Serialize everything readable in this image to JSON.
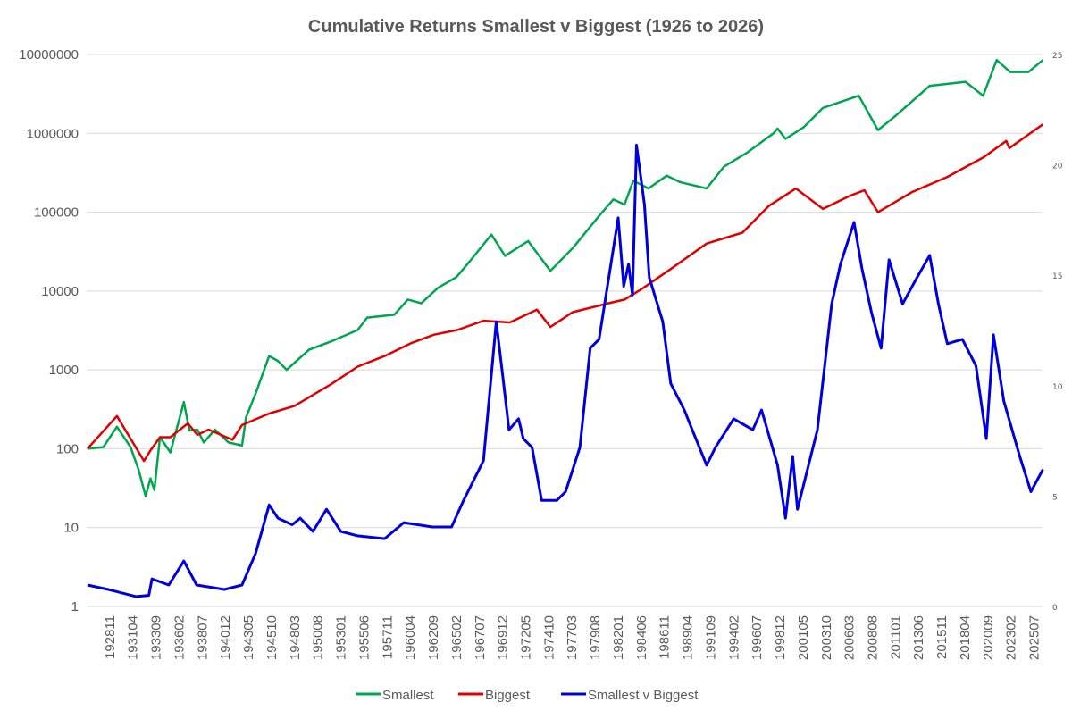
{
  "chart_data": {
    "type": "line",
    "title": "Cumulative Returns Smallest v Biggest  (1926 to 2026)",
    "xlabel": "",
    "ylabel": "",
    "y_scale": "log",
    "ylim": [
      1,
      10000000
    ],
    "y_ticks": [
      "1",
      "10",
      "100",
      "1000",
      "10000",
      "100000",
      "1000000",
      "10000000"
    ],
    "y2lim": [
      0,
      25
    ],
    "y2_ticks": [
      "0",
      "5",
      "10",
      "15",
      "20",
      "25"
    ],
    "x_ticks": [
      "192811",
      "193104",
      "193309",
      "193602",
      "193807",
      "194012",
      "194305",
      "194510",
      "194803",
      "195008",
      "195301",
      "195506",
      "195711",
      "196004",
      "196209",
      "196502",
      "196707",
      "196912",
      "197205",
      "197410",
      "197703",
      "197908",
      "198201",
      "198406",
      "198611",
      "198904",
      "199109",
      "199402",
      "199607",
      "199812",
      "200105",
      "200310",
      "200603",
      "200808",
      "201101",
      "201306",
      "201511",
      "201804",
      "202009",
      "202302",
      "202507"
    ],
    "grid": true,
    "legend_position": "bottom",
    "series": [
      {
        "name": "Smallest",
        "axis": "left",
        "color": "#00A550",
        "points": [
          [
            "192607",
            100
          ],
          [
            "192803",
            105
          ],
          [
            "192908",
            190
          ],
          [
            "193101",
            105
          ],
          [
            "193111",
            55
          ],
          [
            "193208",
            25
          ],
          [
            "193302",
            42
          ],
          [
            "193307",
            30
          ],
          [
            "193402",
            140
          ],
          [
            "193503",
            90
          ],
          [
            "193608",
            390
          ],
          [
            "193703",
            170
          ],
          [
            "193801",
            175
          ],
          [
            "193809",
            120
          ],
          [
            "193911",
            175
          ],
          [
            "194104",
            120
          ],
          [
            "194209",
            110
          ],
          [
            "194302",
            250
          ],
          [
            "194402",
            500
          ],
          [
            "194507",
            1500
          ],
          [
            "194606",
            1300
          ],
          [
            "194705",
            1000
          ],
          [
            "194909",
            1800
          ],
          [
            "195201",
            2300
          ],
          [
            "195410",
            3200
          ],
          [
            "195510",
            4600
          ],
          [
            "195808",
            5000
          ],
          [
            "196001",
            7800
          ],
          [
            "196106",
            7000
          ],
          [
            "196303",
            11000
          ],
          [
            "196502",
            15000
          ],
          [
            "196607",
            24000
          ],
          [
            "196810",
            52000
          ],
          [
            "197003",
            28000
          ],
          [
            "197208",
            43000
          ],
          [
            "197412",
            18000
          ],
          [
            "197704",
            35000
          ],
          [
            "198002",
            92000
          ],
          [
            "198107",
            145000
          ],
          [
            "198209",
            125000
          ],
          [
            "198308",
            250000
          ],
          [
            "198503",
            200000
          ],
          [
            "198702",
            290000
          ],
          [
            "198807",
            240000
          ],
          [
            "199104",
            200000
          ],
          [
            "199302",
            380000
          ],
          [
            "199507",
            570000
          ],
          [
            "199804",
            1000000
          ],
          [
            "199809",
            1150000
          ],
          [
            "199907",
            850000
          ],
          [
            "200106",
            1200000
          ],
          [
            "200306",
            2100000
          ],
          [
            "200703",
            3000000
          ],
          [
            "200903",
            1100000
          ],
          [
            "201011",
            1600000
          ],
          [
            "201408",
            4000000
          ],
          [
            "201805",
            4500000
          ],
          [
            "202003",
            3000000
          ],
          [
            "202108",
            8500000
          ],
          [
            "202301",
            6000000
          ],
          [
            "202412",
            6000000
          ],
          [
            "202606",
            8500000
          ]
        ]
      },
      {
        "name": "Biggest",
        "axis": "left",
        "color": "#E00000",
        "points": [
          [
            "192607",
            100
          ],
          [
            "192908",
            260
          ],
          [
            "193206",
            70
          ],
          [
            "193302",
            95
          ],
          [
            "193402",
            140
          ],
          [
            "193503",
            140
          ],
          [
            "193701",
            210
          ],
          [
            "193801",
            150
          ],
          [
            "193903",
            175
          ],
          [
            "194109",
            130
          ],
          [
            "194209",
            200
          ],
          [
            "194507",
            280
          ],
          [
            "194803",
            350
          ],
          [
            "194909",
            450
          ],
          [
            "195201",
            660
          ],
          [
            "195410",
            1100
          ],
          [
            "195708",
            1500
          ],
          [
            "196006",
            2200
          ],
          [
            "196210",
            2800
          ],
          [
            "196503",
            3200
          ],
          [
            "196712",
            4200
          ],
          [
            "197009",
            4000
          ],
          [
            "197307",
            5800
          ],
          [
            "197412",
            3500
          ],
          [
            "197704",
            5400
          ],
          [
            "198101",
            7000
          ],
          [
            "198209",
            7800
          ],
          [
            "198409",
            11000
          ],
          [
            "198707",
            19000
          ],
          [
            "199104",
            40000
          ],
          [
            "199501",
            55000
          ],
          [
            "199710",
            120000
          ],
          [
            "200008",
            200000
          ],
          [
            "200306",
            110000
          ],
          [
            "200603",
            160000
          ],
          [
            "200710",
            190000
          ],
          [
            "200903",
            100000
          ],
          [
            "201210",
            180000
          ],
          [
            "201606",
            280000
          ],
          [
            "202004",
            500000
          ],
          [
            "202208",
            800000
          ],
          [
            "202212",
            650000
          ],
          [
            "202606",
            1300000
          ]
        ]
      },
      {
        "name": "Smallest v Biggest",
        "axis": "right",
        "color": "#0000DD",
        "points": [
          [
            "192607",
            0.97
          ],
          [
            "192809",
            0.77
          ],
          [
            "193108",
            0.45
          ],
          [
            "193212",
            0.5
          ],
          [
            "193304",
            1.25
          ],
          [
            "193501",
            0.97
          ],
          [
            "193608",
            2.06
          ],
          [
            "193712",
            0.97
          ],
          [
            "194011",
            0.77
          ],
          [
            "194209",
            0.97
          ],
          [
            "194402",
            2.4
          ],
          [
            "194507",
            4.6
          ],
          [
            "194606",
            4.0
          ],
          [
            "194712",
            3.7
          ],
          [
            "194810",
            4.0
          ],
          [
            "195002",
            3.4
          ],
          [
            "195107",
            4.4
          ],
          [
            "195301",
            3.4
          ],
          [
            "195410",
            3.2
          ],
          [
            "195708",
            3.07
          ],
          [
            "195908",
            3.8
          ],
          [
            "196208",
            3.6
          ],
          [
            "196408",
            3.6
          ],
          [
            "196511",
            4.8
          ],
          [
            "196712",
            6.6
          ],
          [
            "196904",
            12.9
          ],
          [
            "196912",
            10.5
          ],
          [
            "197008",
            8.0
          ],
          [
            "197108",
            8.5
          ],
          [
            "197202",
            7.6
          ],
          [
            "197301",
            7.2
          ],
          [
            "197401",
            4.8
          ],
          [
            "197508",
            4.8
          ],
          [
            "197607",
            5.2
          ],
          [
            "197801",
            7.2
          ],
          [
            "197902",
            11.7
          ],
          [
            "198001",
            12.1
          ],
          [
            "198201",
            17.6
          ],
          [
            "198208",
            14.5
          ],
          [
            "198302",
            15.5
          ],
          [
            "198307",
            14.1
          ],
          [
            "198312",
            20.9
          ],
          [
            "198410",
            18.2
          ],
          [
            "198504",
            14.9
          ],
          [
            "198609",
            12.9
          ],
          [
            "198707",
            10.1
          ],
          [
            "198812",
            8.9
          ],
          [
            "198910",
            8.0
          ],
          [
            "199104",
            6.4
          ],
          [
            "199203",
            7.2
          ],
          [
            "199402",
            8.5
          ],
          [
            "199602",
            8.0
          ],
          [
            "199701",
            8.9
          ],
          [
            "199809",
            6.4
          ],
          [
            "199907",
            4.0
          ],
          [
            "200004",
            6.8
          ],
          [
            "200010",
            4.4
          ],
          [
            "200211",
            8.0
          ],
          [
            "200405",
            13.7
          ],
          [
            "200504",
            15.5
          ],
          [
            "200609",
            17.4
          ],
          [
            "200707",
            15.3
          ],
          [
            "200807",
            13.3
          ],
          [
            "200907",
            11.7
          ],
          [
            "201005",
            15.7
          ],
          [
            "201110",
            13.7
          ],
          [
            "201304",
            14.9
          ],
          [
            "201408",
            15.9
          ],
          [
            "201507",
            13.7
          ],
          [
            "201606",
            11.9
          ],
          [
            "201801",
            12.1
          ],
          [
            "201906",
            10.9
          ],
          [
            "202007",
            7.6
          ],
          [
            "202104",
            12.3
          ],
          [
            "202205",
            9.3
          ],
          [
            "202401",
            6.8
          ],
          [
            "202503",
            5.2
          ],
          [
            "202606",
            6.2
          ]
        ]
      }
    ]
  }
}
